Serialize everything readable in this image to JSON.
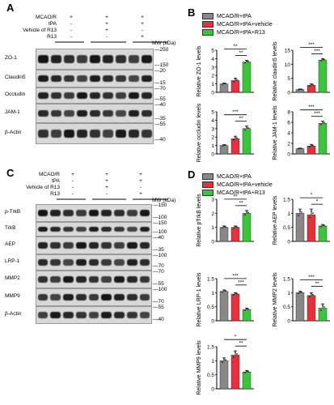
{
  "panels": {
    "A": "A",
    "B": "B",
    "C": "C",
    "D": "D"
  },
  "conditions": [
    "MCAO/R",
    "tPA",
    "Vehicle of R13",
    "R13"
  ],
  "signs": [
    [
      "+",
      "+",
      "+"
    ],
    [
      "-",
      "+",
      "+"
    ],
    [
      "-",
      "+",
      "-"
    ],
    [
      "-",
      "-",
      "+"
    ]
  ],
  "mw_title": "MW (kDa)",
  "blot_A": {
    "labels": [
      "ZO-1",
      "Claudin5",
      "Occludin",
      "JAM-1",
      "β-Actin"
    ],
    "markers": [
      [
        "—250",
        "—150"
      ],
      [
        "—20",
        "—15"
      ],
      [
        "—70",
        "—55"
      ],
      [
        "—40",
        "—35"
      ],
      [
        "—55",
        "—40"
      ]
    ]
  },
  "blot_C": {
    "labels": [
      "p-TrkB",
      "TrkB",
      "AEP",
      "LRP-1",
      "MMP2",
      "MMP9",
      "β-Actin"
    ],
    "markers": [
      [
        "—150",
        "—100"
      ],
      [
        "—150",
        "—100"
      ],
      [
        "—40",
        "—35"
      ],
      [
        "—100",
        "—70"
      ],
      [
        "—70",
        "—55"
      ],
      [
        "—100",
        "—70"
      ],
      [
        "—55",
        "—40"
      ]
    ]
  },
  "legend": {
    "items": [
      "MCAO/R+tPA",
      "MCAO/R+tPA+vehicle",
      "MCAO/R+tPA+R13"
    ],
    "colors": [
      "#888888",
      "#e8303a",
      "#3cc43c"
    ]
  },
  "chart_data": [
    {
      "type": "bar",
      "categories": [
        "MCAO/R+tPA",
        "MCAO/R+tPA+vehicle",
        "MCAO/R+tPA+R13"
      ],
      "values": [
        1.0,
        1.4,
        3.6
      ],
      "errors": [
        0.1,
        0.3,
        0.2
      ],
      "ylabel": "Relative ZO-1 levels",
      "ylim": [
        0,
        5
      ],
      "yticks": [
        0,
        1,
        2,
        3,
        4,
        5
      ],
      "sig": [
        {
          "pair": [
            0,
            2
          ],
          "text": "**"
        },
        {
          "pair": [
            1,
            2
          ],
          "text": "**"
        }
      ]
    },
    {
      "type": "bar",
      "categories": [
        "MCAO/R+tPA",
        "MCAO/R+tPA+vehicle",
        "MCAO/R+tPA+R13"
      ],
      "values": [
        1.0,
        2.5,
        11.5
      ],
      "errors": [
        0.2,
        0.5,
        0.5
      ],
      "ylabel": "Relative claudin5 levels",
      "ylim": [
        0,
        15
      ],
      "yticks": [
        0,
        5,
        10,
        15
      ],
      "sig": [
        {
          "pair": [
            0,
            2
          ],
          "text": "***"
        },
        {
          "pair": [
            1,
            2
          ],
          "text": "***"
        }
      ]
    },
    {
      "type": "bar",
      "categories": [
        "MCAO/R+tPA",
        "MCAO/R+tPA+vehicle",
        "MCAO/R+tPA+R13"
      ],
      "values": [
        1.0,
        1.8,
        3.0
      ],
      "errors": [
        0.1,
        0.3,
        0.3
      ],
      "ylabel": "Relative occludin levels",
      "ylim": [
        0,
        5
      ],
      "yticks": [
        0,
        1,
        2,
        3,
        4,
        5
      ],
      "sig": [
        {
          "pair": [
            0,
            2
          ],
          "text": "***"
        },
        {
          "pair": [
            1,
            2
          ],
          "text": "**"
        }
      ]
    },
    {
      "type": "bar",
      "categories": [
        "MCAO/R+tPA",
        "MCAO/R+tPA+vehicle",
        "MCAO/R+tPA+R13"
      ],
      "values": [
        1.0,
        1.5,
        5.8
      ],
      "errors": [
        0.1,
        0.3,
        0.4
      ],
      "ylabel": "Relative JAM-1 levels",
      "ylim": [
        0,
        8
      ],
      "yticks": [
        0,
        2,
        4,
        6,
        8
      ],
      "sig": [
        {
          "pair": [
            0,
            2
          ],
          "text": "***"
        },
        {
          "pair": [
            1,
            2
          ],
          "text": "***"
        }
      ]
    },
    {
      "type": "bar",
      "categories": [
        "MCAO/R+tPA",
        "MCAO/R+tPA+vehicle",
        "MCAO/R+tPA+R13"
      ],
      "values": [
        1.0,
        1.0,
        2.0
      ],
      "errors": [
        0.1,
        0.1,
        0.2
      ],
      "ylabel": "Relative pTrkB levels",
      "ylim": [
        0,
        3
      ],
      "yticks": [
        0,
        1,
        2,
        3
      ],
      "sig": [
        {
          "pair": [
            0,
            2
          ],
          "text": "**"
        },
        {
          "pair": [
            1,
            2
          ],
          "text": "**"
        }
      ]
    },
    {
      "type": "bar",
      "categories": [
        "MCAO/R+tPA",
        "MCAO/R+tPA+vehicle",
        "MCAO/R+tPA+R13"
      ],
      "values": [
        1.0,
        0.95,
        0.55
      ],
      "errors": [
        0.15,
        0.2,
        0.05
      ],
      "ylabel": "Relative AEP levels",
      "ylim": [
        0,
        1.5
      ],
      "yticks": [
        0.0,
        0.5,
        1.0,
        1.5
      ],
      "sig": [
        {
          "pair": [
            0,
            2
          ],
          "text": "*"
        },
        {
          "pair": [
            1,
            2
          ],
          "text": "*"
        }
      ]
    },
    {
      "type": "bar",
      "categories": [
        "MCAO/R+tPA",
        "MCAO/R+tPA+vehicle",
        "MCAO/R+tPA+R13"
      ],
      "values": [
        1.05,
        0.95,
        0.4
      ],
      "errors": [
        0.05,
        0.05,
        0.05
      ],
      "ylabel": "Relative LRP-1 levels",
      "ylim": [
        0,
        1.5
      ],
      "yticks": [
        0.0,
        0.5,
        1.0,
        1.5
      ],
      "sig": [
        {
          "pair": [
            0,
            2
          ],
          "text": "***"
        },
        {
          "pair": [
            1,
            2
          ],
          "text": "***"
        }
      ]
    },
    {
      "type": "bar",
      "categories": [
        "MCAO/R+tPA",
        "MCAO/R+tPA+vehicle",
        "MCAO/R+tPA+R13"
      ],
      "values": [
        1.0,
        0.9,
        0.45
      ],
      "errors": [
        0.05,
        0.1,
        0.15
      ],
      "ylabel": "Relative MMP2 levels",
      "ylim": [
        0,
        1.5
      ],
      "yticks": [
        0.0,
        0.5,
        1.0,
        1.5
      ],
      "sig": [
        {
          "pair": [
            0,
            2
          ],
          "text": "***"
        },
        {
          "pair": [
            1,
            2
          ],
          "text": "**"
        }
      ]
    },
    {
      "type": "bar",
      "categories": [
        "MCAO/R+tPA",
        "MCAO/R+tPA+vehicle",
        "MCAO/R+tPA+R13"
      ],
      "values": [
        1.0,
        1.2,
        0.6
      ],
      "errors": [
        0.1,
        0.15,
        0.05
      ],
      "ylabel": "Relative MMP9 levels",
      "ylim": [
        0,
        1.5
      ],
      "yticks": [
        0.0,
        0.5,
        1.0,
        1.5
      ],
      "sig": [
        {
          "pair": [
            0,
            2
          ],
          "text": "*"
        },
        {
          "pair": [
            1,
            2
          ],
          "text": "**"
        }
      ]
    }
  ]
}
